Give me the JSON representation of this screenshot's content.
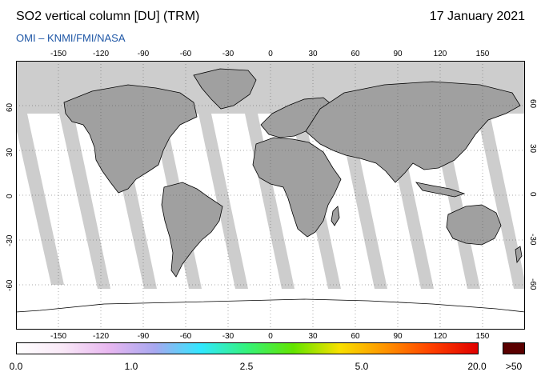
{
  "header": {
    "title": "SO2 vertical column [DU] (TRM)",
    "date": "17 January 2021",
    "subtitle": "OMI  –  KNMI/FMI/NASA"
  },
  "map": {
    "projection": "equirectangular",
    "lon_range": [
      -180,
      180
    ],
    "lat_range": [
      -90,
      90
    ],
    "lon_ticks": [
      "-150",
      "-120",
      "-90",
      "-60",
      "-30",
      "0",
      "30",
      "60",
      "90",
      "120",
      "150"
    ],
    "lat_ticks": [
      "60",
      "30",
      "0",
      "-30",
      "-60"
    ],
    "colors": {
      "land": "#a0a0a0",
      "no_data": "#cdcdcd",
      "ocean_data": "#ffffff",
      "frame": "#000000"
    }
  },
  "colorbar": {
    "labels": [
      "0.0",
      "1.0",
      "2.5",
      "5.0",
      "20.0",
      ">50"
    ],
    "gradient": [
      "#ffffff",
      "#f9e8f7",
      "#e8b7f0",
      "#a8a8f0",
      "#31e8ff",
      "#35f27a",
      "#63e400",
      "#f8e000",
      "#ff9300",
      "#ff4000",
      "#e00000"
    ],
    "max_color": "#5a0000"
  }
}
